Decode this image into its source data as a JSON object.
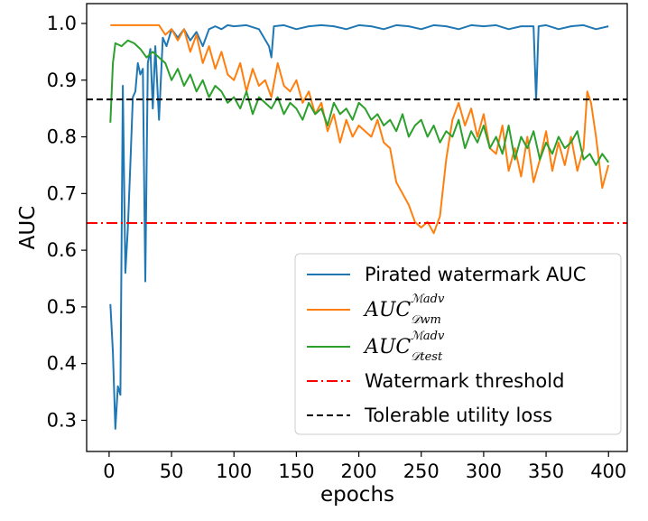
{
  "chart_data": {
    "type": "line",
    "xlabel": "epochs",
    "ylabel": "AUC",
    "xlim": [
      -18,
      415
    ],
    "ylim": [
      0.245,
      1.035
    ],
    "xticks": [
      0,
      50,
      100,
      150,
      200,
      250,
      300,
      350,
      400
    ],
    "yticks": [
      0.3,
      0.4,
      0.5,
      0.6,
      0.7,
      0.8,
      0.9,
      1.0
    ],
    "xtick_labels": [
      "0",
      "50",
      "100",
      "150",
      "200",
      "250",
      "300",
      "350",
      "400"
    ],
    "ytick_labels": [
      "0.3",
      "0.4",
      "0.5",
      "0.6",
      "0.7",
      "0.8",
      "0.9",
      "1.0"
    ],
    "grid": false,
    "legend_position": "lower-right",
    "series": [
      {
        "name": "Pirated watermark AUC",
        "label": "Pirated watermark AUC",
        "color": "#1f77b4",
        "style": "solid",
        "x": [
          1,
          3,
          5,
          7,
          9,
          11,
          13,
          15,
          17,
          19,
          21,
          23,
          25,
          27,
          29,
          31,
          33,
          35,
          37,
          40,
          43,
          46,
          50,
          55,
          60,
          65,
          70,
          75,
          80,
          85,
          90,
          95,
          100,
          110,
          120,
          128,
          130,
          132,
          140,
          150,
          160,
          170,
          180,
          190,
          200,
          210,
          220,
          230,
          240,
          250,
          260,
          270,
          280,
          290,
          300,
          310,
          320,
          330,
          340,
          342,
          344,
          350,
          360,
          370,
          380,
          390,
          400
        ],
        "values": [
          0.505,
          0.42,
          0.285,
          0.36,
          0.345,
          0.89,
          0.56,
          0.64,
          0.75,
          0.87,
          0.88,
          0.93,
          0.91,
          0.92,
          0.545,
          0.93,
          0.955,
          0.85,
          0.96,
          0.83,
          0.975,
          0.96,
          0.99,
          0.975,
          0.99,
          0.97,
          0.985,
          0.96,
          0.99,
          0.995,
          0.99,
          0.997,
          0.995,
          0.997,
          0.99,
          0.96,
          0.94,
          0.995,
          0.997,
          0.99,
          0.995,
          0.997,
          0.995,
          0.99,
          0.997,
          0.995,
          0.99,
          0.997,
          0.995,
          0.99,
          0.997,
          0.995,
          0.99,
          0.997,
          0.995,
          0.997,
          0.99,
          0.995,
          0.995,
          0.865,
          0.995,
          0.997,
          0.99,
          0.995,
          0.997,
          0.99,
          0.995
        ]
      },
      {
        "name": "AUC_D_wm^M_adv",
        "label_base": "AUC",
        "label_sup": "ℳadv",
        "label_sub": "𝒟wm",
        "color": "#ff7f0e",
        "style": "solid",
        "x": [
          1,
          20,
          40,
          45,
          50,
          55,
          60,
          65,
          70,
          75,
          80,
          85,
          90,
          95,
          100,
          105,
          110,
          115,
          120,
          125,
          130,
          135,
          140,
          145,
          150,
          155,
          160,
          165,
          170,
          175,
          180,
          185,
          190,
          195,
          200,
          205,
          210,
          215,
          220,
          225,
          230,
          235,
          240,
          245,
          250,
          255,
          260,
          265,
          270,
          275,
          280,
          285,
          290,
          295,
          300,
          305,
          310,
          315,
          320,
          325,
          330,
          335,
          340,
          345,
          350,
          355,
          360,
          365,
          370,
          375,
          380,
          383,
          386,
          390,
          395,
          400
        ],
        "values": [
          0.997,
          0.997,
          0.997,
          0.98,
          0.99,
          0.97,
          0.99,
          0.95,
          0.98,
          0.93,
          0.96,
          0.92,
          0.95,
          0.91,
          0.9,
          0.93,
          0.88,
          0.92,
          0.89,
          0.9,
          0.87,
          0.93,
          0.89,
          0.88,
          0.9,
          0.86,
          0.88,
          0.84,
          0.86,
          0.81,
          0.84,
          0.79,
          0.83,
          0.8,
          0.82,
          0.81,
          0.8,
          0.83,
          0.79,
          0.78,
          0.72,
          0.7,
          0.68,
          0.65,
          0.64,
          0.65,
          0.63,
          0.66,
          0.76,
          0.83,
          0.86,
          0.82,
          0.85,
          0.8,
          0.84,
          0.78,
          0.77,
          0.82,
          0.74,
          0.78,
          0.73,
          0.8,
          0.72,
          0.76,
          0.81,
          0.74,
          0.79,
          0.75,
          0.8,
          0.74,
          0.78,
          0.88,
          0.86,
          0.8,
          0.71,
          0.75
        ]
      },
      {
        "name": "AUC_D_test^M_adv",
        "label_base": "AUC",
        "label_sup": "ℳadv",
        "label_sub": "𝒟test",
        "color": "#2ca02c",
        "style": "solid",
        "x": [
          1,
          3,
          5,
          10,
          15,
          20,
          25,
          30,
          35,
          40,
          45,
          50,
          55,
          60,
          65,
          70,
          75,
          80,
          85,
          90,
          95,
          100,
          105,
          110,
          115,
          120,
          125,
          130,
          135,
          140,
          145,
          150,
          155,
          160,
          165,
          170,
          175,
          180,
          185,
          190,
          195,
          200,
          205,
          210,
          215,
          220,
          225,
          230,
          235,
          240,
          245,
          250,
          255,
          260,
          265,
          270,
          275,
          280,
          285,
          290,
          295,
          300,
          305,
          310,
          315,
          320,
          325,
          330,
          335,
          340,
          345,
          350,
          355,
          360,
          365,
          370,
          375,
          380,
          385,
          390,
          395,
          400
        ],
        "values": [
          0.825,
          0.93,
          0.965,
          0.96,
          0.97,
          0.965,
          0.955,
          0.94,
          0.95,
          0.94,
          0.93,
          0.9,
          0.92,
          0.89,
          0.91,
          0.88,
          0.9,
          0.87,
          0.89,
          0.88,
          0.86,
          0.87,
          0.85,
          0.88,
          0.84,
          0.87,
          0.86,
          0.85,
          0.87,
          0.84,
          0.86,
          0.85,
          0.83,
          0.86,
          0.84,
          0.85,
          0.82,
          0.86,
          0.84,
          0.85,
          0.83,
          0.86,
          0.85,
          0.83,
          0.84,
          0.82,
          0.83,
          0.81,
          0.84,
          0.8,
          0.82,
          0.83,
          0.8,
          0.82,
          0.79,
          0.81,
          0.8,
          0.83,
          0.78,
          0.81,
          0.79,
          0.82,
          0.78,
          0.8,
          0.77,
          0.82,
          0.76,
          0.8,
          0.78,
          0.81,
          0.76,
          0.79,
          0.77,
          0.8,
          0.78,
          0.79,
          0.81,
          0.76,
          0.77,
          0.75,
          0.77,
          0.755
        ]
      },
      {
        "name": "Watermark threshold",
        "label": "Watermark threshold",
        "color": "#ff0000",
        "style": "dashdot",
        "y": 0.648
      },
      {
        "name": "Tolerable utility loss",
        "label": "Tolerable utility loss",
        "color": "#000000",
        "style": "dashed",
        "y": 0.866
      }
    ]
  }
}
